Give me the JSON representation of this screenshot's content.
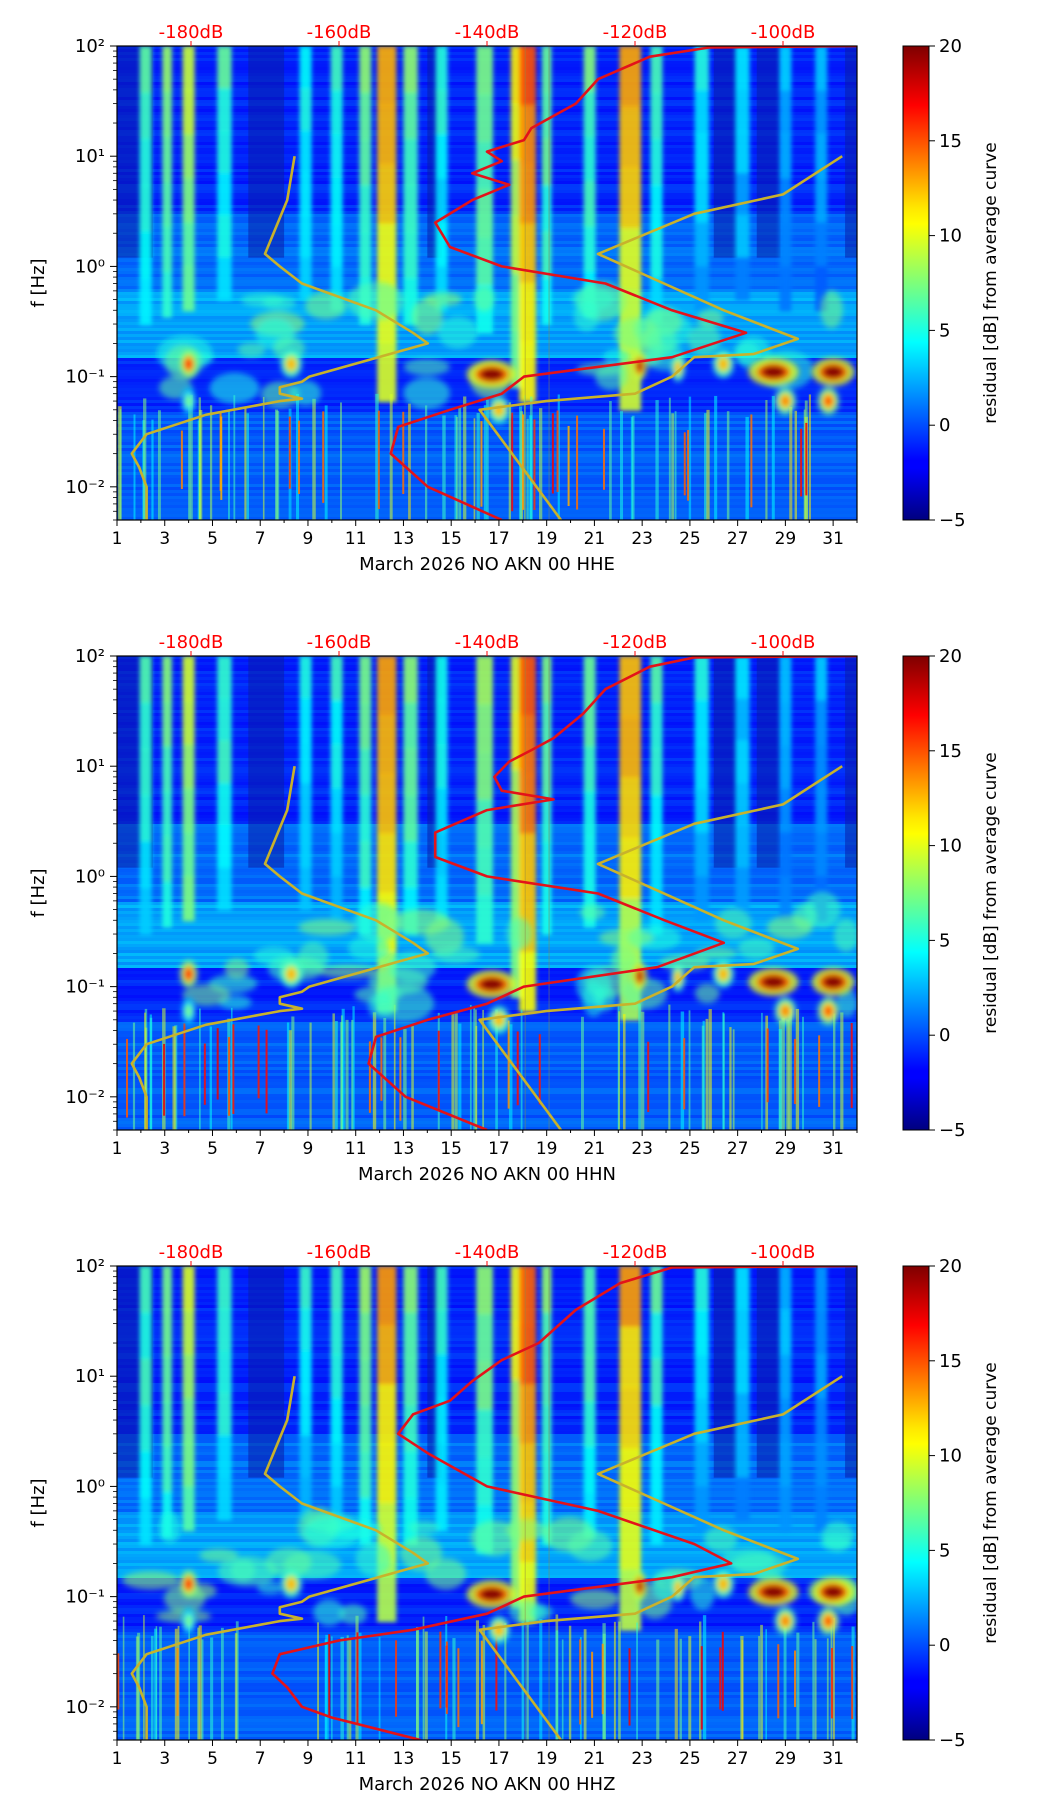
{
  "figure": {
    "panel_count": 3,
    "top_axis_ticks": [
      "-180dB",
      "-160dB",
      "-140dB",
      "-120dB",
      "-100dB"
    ],
    "top_axis_color": "#ff0000",
    "nlnm_nhnm_color": "#c8b22c",
    "mean_psd_color": "#e3121a",
    "colormap": "jet"
  },
  "chart_data": [
    {
      "type": "heatmap",
      "xlabel": "March 2026 NO AKN 00 HHE",
      "ylabel": "f [Hz]",
      "x_ticks": [
        "1",
        "3",
        "5",
        "7",
        "9",
        "11",
        "13",
        "15",
        "17",
        "19",
        "21",
        "23",
        "25",
        "27",
        "29",
        "31"
      ],
      "xlim": [
        1,
        32
      ],
      "ylim": [
        0.005,
        100
      ],
      "y_scale": "log",
      "y_ticks": [
        "10⁻²",
        "10⁻¹",
        "10⁰",
        "10¹",
        "10²"
      ],
      "top_axis": {
        "ticks": [
          "-180dB",
          "-160dB",
          "-140dB",
          "-120dB",
          "-100dB"
        ],
        "values": [
          -180,
          -160,
          -140,
          -120,
          -100
        ],
        "range": [
          -190,
          -90
        ]
      },
      "colorbar": {
        "label": "residual [dB] from average curve",
        "range": [
          -5,
          20
        ],
        "ticks": [
          "20",
          "15",
          "10",
          "5",
          "0",
          "−5"
        ]
      },
      "curves": [
        {
          "name": "",
          "color": "#e3121a",
          "points": [
            [
              -138,
              0.005
            ],
            [
              -148,
              0.01
            ],
            [
              -153,
              0.02
            ],
            [
              -152,
              0.035
            ],
            [
              -145,
              0.05
            ],
            [
              -138,
              0.07
            ],
            [
              -135,
              0.1
            ],
            [
              -115,
              0.15
            ],
            [
              -105,
              0.25
            ],
            [
              -115,
              0.4
            ],
            [
              -124,
              0.7
            ],
            [
              -138,
              1.0
            ],
            [
              -145,
              1.5
            ],
            [
              -147,
              2.5
            ],
            [
              -142,
              4.0
            ],
            [
              -137,
              5.5
            ],
            [
              -142,
              7
            ],
            [
              -138,
              9
            ],
            [
              -140,
              11
            ],
            [
              -135,
              14
            ],
            [
              -134,
              18
            ],
            [
              -128,
              30
            ],
            [
              -125,
              50
            ],
            [
              -118,
              80
            ],
            [
              -110,
              97
            ],
            [
              -90,
              100
            ]
          ]
        },
        {
          "name": "",
          "color": "#c8b22c",
          "points": [
            [
              -186,
              0.005
            ],
            [
              -186,
              0.01
            ],
            [
              -187,
              0.015
            ],
            [
              -188,
              0.02
            ],
            [
              -186,
              0.03
            ],
            [
              -178,
              0.045
            ],
            [
              -168,
              0.06
            ],
            [
              -165,
              0.063
            ],
            [
              -168,
              0.07
            ],
            [
              -168,
              0.08
            ],
            [
              -165,
              0.09
            ],
            [
              -164,
              0.1
            ],
            [
              -148,
              0.2
            ],
            [
              -150,
              0.25
            ],
            [
              -155,
              0.4
            ],
            [
              -165,
              0.7
            ],
            [
              -168,
              1.0
            ],
            [
              -170,
              1.3
            ],
            [
              -167,
              4.0
            ],
            [
              -166,
              10
            ]
          ]
        },
        {
          "name": "",
          "color": "#c8b22c",
          "points": [
            [
              -130,
              0.005
            ],
            [
              -141,
              0.05
            ],
            [
              -132,
              0.06
            ],
            [
              -120,
              0.07
            ],
            [
              -115,
              0.1
            ],
            [
              -112,
              0.15
            ],
            [
              -104,
              0.16
            ],
            [
              -98,
              0.22
            ],
            [
              -108,
              0.4
            ],
            [
              -125,
              1.3
            ],
            [
              -112,
              3.0
            ],
            [
              -100,
              4.5
            ],
            [
              -92,
              10
            ]
          ]
        }
      ]
    },
    {
      "type": "heatmap",
      "xlabel": "March 2026 NO AKN 00 HHN",
      "ylabel": "f [Hz]",
      "x_ticks": [
        "1",
        "3",
        "5",
        "7",
        "9",
        "11",
        "13",
        "15",
        "17",
        "19",
        "21",
        "23",
        "25",
        "27",
        "29",
        "31"
      ],
      "xlim": [
        1,
        32
      ],
      "ylim": [
        0.005,
        100
      ],
      "y_scale": "log",
      "y_ticks": [
        "10⁻²",
        "10⁻¹",
        "10⁰",
        "10¹",
        "10²"
      ],
      "top_axis": {
        "ticks": [
          "-180dB",
          "-160dB",
          "-140dB",
          "-120dB",
          "-100dB"
        ],
        "values": [
          -180,
          -160,
          -140,
          -120,
          -100
        ],
        "range": [
          -190,
          -90
        ]
      },
      "colorbar": {
        "label": "residual [dB] from average curve",
        "range": [
          -5,
          20
        ],
        "ticks": [
          "20",
          "15",
          "10",
          "5",
          "0",
          "−5"
        ]
      },
      "curves": [
        {
          "name": "",
          "color": "#e3121a",
          "points": [
            [
              -140,
              0.005
            ],
            [
              -151,
              0.01
            ],
            [
              -156,
              0.02
            ],
            [
              -155,
              0.035
            ],
            [
              -148,
              0.05
            ],
            [
              -140,
              0.07
            ],
            [
              -135,
              0.1
            ],
            [
              -117,
              0.15
            ],
            [
              -108,
              0.25
            ],
            [
              -116,
              0.4
            ],
            [
              -125,
              0.7
            ],
            [
              -140,
              1.0
            ],
            [
              -147,
              1.5
            ],
            [
              -147,
              2.5
            ],
            [
              -140,
              4.0
            ],
            [
              -131,
              5.0
            ],
            [
              -138,
              6
            ],
            [
              -139,
              8
            ],
            [
              -137,
              11
            ],
            [
              -134,
              14
            ],
            [
              -131,
              18
            ],
            [
              -127,
              30
            ],
            [
              -124,
              50
            ],
            [
              -118,
              80
            ],
            [
              -112,
              97
            ],
            [
              -90,
              100
            ]
          ]
        },
        {
          "name": "",
          "color": "#c8b22c",
          "points": [
            [
              -186,
              0.005
            ],
            [
              -186,
              0.01
            ],
            [
              -187,
              0.015
            ],
            [
              -188,
              0.02
            ],
            [
              -186,
              0.03
            ],
            [
              -178,
              0.045
            ],
            [
              -168,
              0.06
            ],
            [
              -165,
              0.063
            ],
            [
              -168,
              0.07
            ],
            [
              -168,
              0.08
            ],
            [
              -165,
              0.09
            ],
            [
              -164,
              0.1
            ],
            [
              -148,
              0.2
            ],
            [
              -150,
              0.25
            ],
            [
              -155,
              0.4
            ],
            [
              -165,
              0.7
            ],
            [
              -168,
              1.0
            ],
            [
              -170,
              1.3
            ],
            [
              -167,
              4.0
            ],
            [
              -166,
              10
            ]
          ]
        },
        {
          "name": "",
          "color": "#c8b22c",
          "points": [
            [
              -130,
              0.005
            ],
            [
              -141,
              0.05
            ],
            [
              -132,
              0.06
            ],
            [
              -120,
              0.07
            ],
            [
              -115,
              0.1
            ],
            [
              -112,
              0.15
            ],
            [
              -104,
              0.16
            ],
            [
              -98,
              0.22
            ],
            [
              -108,
              0.4
            ],
            [
              -125,
              1.3
            ],
            [
              -112,
              3.0
            ],
            [
              -100,
              4.5
            ],
            [
              -92,
              10
            ]
          ]
        }
      ]
    },
    {
      "type": "heatmap",
      "xlabel": "March 2026 NO AKN 00 HHZ",
      "ylabel": "f [Hz]",
      "x_ticks": [
        "1",
        "3",
        "5",
        "7",
        "9",
        "11",
        "13",
        "15",
        "17",
        "19",
        "21",
        "23",
        "25",
        "27",
        "29",
        "31"
      ],
      "xlim": [
        1,
        32
      ],
      "ylim": [
        0.005,
        100
      ],
      "y_scale": "log",
      "y_ticks": [
        "10⁻²",
        "10⁻¹",
        "10⁰",
        "10¹",
        "10²"
      ],
      "top_axis": {
        "ticks": [
          "-180dB",
          "-160dB",
          "-140dB",
          "-120dB",
          "-100dB"
        ],
        "values": [
          -180,
          -160,
          -140,
          -120,
          -100
        ],
        "range": [
          -190,
          -90
        ]
      },
      "colorbar": {
        "label": "residual [dB] from average curve",
        "range": [
          -5,
          20
        ],
        "ticks": [
          "20",
          "15",
          "10",
          "5",
          "0",
          "−5"
        ]
      },
      "curves": [
        {
          "name": "",
          "color": "#e3121a",
          "points": [
            [
              -149,
              0.005
            ],
            [
              -161,
              0.008
            ],
            [
              -165,
              0.01
            ],
            [
              -167,
              0.015
            ],
            [
              -169,
              0.02
            ],
            [
              -168,
              0.03
            ],
            [
              -160,
              0.04
            ],
            [
              -150,
              0.05
            ],
            [
              -140,
              0.07
            ],
            [
              -135,
              0.1
            ],
            [
              -115,
              0.15
            ],
            [
              -107,
              0.2
            ],
            [
              -112,
              0.3
            ],
            [
              -125,
              0.6
            ],
            [
              -140,
              1.0
            ],
            [
              -148,
              2.0
            ],
            [
              -152,
              3.0
            ],
            [
              -150,
              4.5
            ],
            [
              -145,
              6
            ],
            [
              -142,
              9
            ],
            [
              -138,
              14
            ],
            [
              -133,
              20
            ],
            [
              -128,
              40
            ],
            [
              -122,
              70
            ],
            [
              -115,
              97
            ],
            [
              -90,
              100
            ]
          ]
        },
        {
          "name": "",
          "color": "#c8b22c",
          "points": [
            [
              -186,
              0.005
            ],
            [
              -186,
              0.01
            ],
            [
              -187,
              0.015
            ],
            [
              -188,
              0.02
            ],
            [
              -186,
              0.03
            ],
            [
              -178,
              0.045
            ],
            [
              -168,
              0.06
            ],
            [
              -165,
              0.063
            ],
            [
              -168,
              0.07
            ],
            [
              -168,
              0.08
            ],
            [
              -165,
              0.09
            ],
            [
              -164,
              0.1
            ],
            [
              -148,
              0.2
            ],
            [
              -150,
              0.25
            ],
            [
              -155,
              0.4
            ],
            [
              -165,
              0.7
            ],
            [
              -168,
              1.0
            ],
            [
              -170,
              1.3
            ],
            [
              -167,
              4.0
            ],
            [
              -166,
              10
            ]
          ]
        },
        {
          "name": "",
          "color": "#c8b22c",
          "points": [
            [
              -130,
              0.005
            ],
            [
              -141,
              0.05
            ],
            [
              -132,
              0.06
            ],
            [
              -120,
              0.07
            ],
            [
              -115,
              0.1
            ],
            [
              -112,
              0.15
            ],
            [
              -104,
              0.16
            ],
            [
              -98,
              0.22
            ],
            [
              -108,
              0.4
            ],
            [
              -125,
              1.3
            ],
            [
              -112,
              3.0
            ],
            [
              -100,
              4.5
            ],
            [
              -92,
              10
            ]
          ]
        }
      ]
    }
  ]
}
